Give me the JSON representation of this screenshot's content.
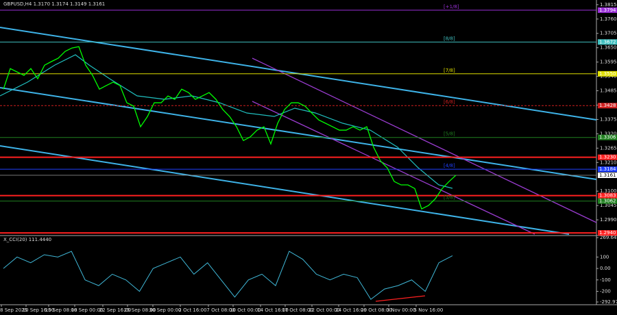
{
  "chart_data": {
    "type": "line",
    "title": "GBPUSD,H4  1.3170 1.3174 1.3149 1.3161",
    "ylim": [
      1.2935,
      1.3833
    ],
    "yticks": [
      1.3815,
      {
        "value": 1.376,
        "label": "1.3760"
      },
      1.3705,
      {
        "value": 1.365,
        "label": "1.3650"
      },
      1.3595,
      {
        "value": 1.354,
        "label": "1.3540"
      },
      1.3485,
      {
        "value": 1.343,
        "label": "1.3430"
      },
      1.3375,
      {
        "value": 1.332,
        "label": "1.3320"
      },
      1.3265,
      {
        "value": 1.321,
        "label": "1.3210"
      },
      {
        "value": 1.31,
        "label": "1.3100"
      },
      1.3045,
      {
        "value": 1.299,
        "label": "1.2990"
      }
    ],
    "x_labels": [
      "8 Sep 2025",
      "10 Sep 16:00",
      "15 Sep 08:00",
      "18 Sep 00:00",
      "22 Sep 16:00",
      "25 Sep 08:00",
      "30 Sep 00:00",
      "2 Oct 16:00",
      "7 Oct 08:00",
      "10 Oct 00:00",
      "14 Oct 16:00",
      "17 Oct 08:00",
      "22 Oct 00:00",
      "24 Oct 16:00",
      "29 Oct 08:00",
      "3 Nov 00:00",
      "5 Nov 16:00"
    ],
    "series": [
      {
        "name": "GBPUSD",
        "color": "#00ff00",
        "values": [
          1.3491,
          1.357,
          1.3557,
          1.3544,
          1.357,
          1.3531,
          1.3583,
          1.3597,
          1.361,
          1.3636,
          1.3649,
          1.3654,
          1.3583,
          1.3544,
          1.3491,
          1.3505,
          1.3518,
          1.3505,
          1.3439,
          1.3426,
          1.3347,
          1.3386,
          1.3439,
          1.3439,
          1.3465,
          1.3452,
          1.3491,
          1.3478,
          1.3452,
          1.3465,
          1.3478,
          1.3452,
          1.3413,
          1.3386,
          1.3347,
          1.3294,
          1.3308,
          1.3334,
          1.3347,
          1.3281,
          1.336,
          1.3413,
          1.3439,
          1.3439,
          1.3426,
          1.3399,
          1.3373,
          1.336,
          1.3347,
          1.3334,
          1.3334,
          1.3347,
          1.3334,
          1.3347,
          1.3268,
          1.3216,
          1.3189,
          1.3137,
          1.3124,
          1.3124,
          1.311,
          1.3032,
          1.3045,
          1.3071,
          1.311,
          1.3137,
          1.3161
        ]
      }
    ],
    "current_price": {
      "value": 1.3161,
      "label": "1.3161"
    },
    "levels": [
      {
        "value": 1.3794,
        "color": "#9b30d9",
        "tag": "[+1/8]",
        "label": "1.3794"
      },
      {
        "value": 1.3672,
        "color": "#40c0c0",
        "tag": "[8/8]",
        "label": "1.3672"
      },
      {
        "value": 1.355,
        "color": "#e0e000",
        "tag": "[7/8]",
        "label": "1.3550"
      },
      {
        "value": 1.3428,
        "color": "#d02020",
        "tag": "[6/8]",
        "label": "1.3428"
      },
      {
        "value": 1.3306,
        "color": "#208020",
        "tag": "[5/8]",
        "label": "1.3306"
      },
      {
        "value": 1.323,
        "color": "#ff2020",
        "label": "1.3230"
      },
      {
        "value": 1.3184,
        "color": "#2040ff",
        "tag": "[4/8]",
        "label": "1.3184"
      },
      {
        "value": 1.3083,
        "color": "#ff2020",
        "label": "1.3083"
      },
      {
        "value": 1.3062,
        "color": "#208020",
        "tag": "[3/8]",
        "label": "1.3062"
      },
      {
        "value": 1.294,
        "color": "#ff2020",
        "label": "1.2940"
      }
    ],
    "indicator": {
      "title": "X_CCI(20) 111.4440",
      "color": "#40b8d8",
      "ylim": [
        -292.972,
        269.6457
      ],
      "yticks": [
        269.6457,
        100,
        {
          "value": 0,
          "label": "0.00"
        },
        -100,
        -200,
        {
          "value": -292.972,
          "label": "-292.9720"
        }
      ],
      "values": [
        0,
        100,
        50,
        120,
        100,
        150,
        -100,
        -150,
        -50,
        -100,
        -200,
        0,
        50,
        100,
        -50,
        50,
        -100,
        -250,
        -100,
        -50,
        -150,
        150,
        80,
        -50,
        -100,
        -50,
        -80,
        -270,
        -180,
        -150,
        -100,
        -200,
        50,
        111.444
      ]
    }
  }
}
